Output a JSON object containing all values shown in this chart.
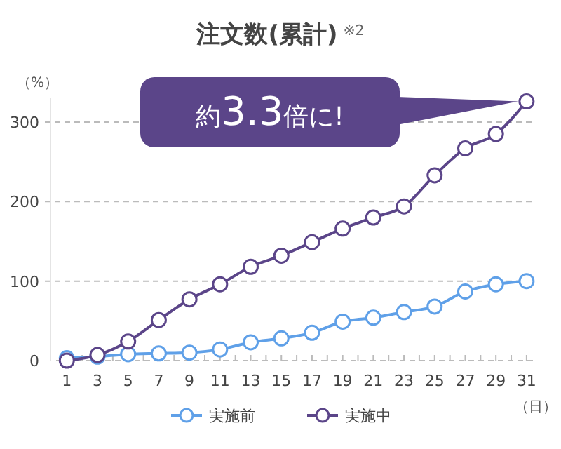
{
  "chart_data": {
    "type": "line",
    "title": "注文数(累計)$^{※2}$",
    "xlabel": "（日）",
    "ylabel": "（%）",
    "x": [
      1,
      3,
      5,
      7,
      9,
      11,
      13,
      15,
      17,
      19,
      21,
      23,
      25,
      27,
      29,
      31
    ],
    "series": [
      {
        "name": "実施前",
        "color": "#5fa0e8",
        "values": [
          3,
          5,
          8,
          9,
          10,
          14,
          23,
          28,
          35,
          49,
          54,
          61,
          68,
          87,
          96,
          100
        ]
      },
      {
        "name": "実施中",
        "color": "#5b4589",
        "values": [
          0,
          7,
          24,
          51,
          77,
          96,
          118,
          132,
          149,
          166,
          180,
          194,
          233,
          267,
          285,
          326
        ]
      }
    ],
    "xlim": [
      0.3,
      31.6
    ],
    "ylim": [
      0,
      330
    ],
    "xticks": [
      1,
      {
        "value": 2,
        "label": null
      },
      3,
      {
        "value": 4,
        "label": null
      },
      5,
      {
        "value": 6,
        "label": null
      },
      7,
      {
        "value": 8,
        "label": null
      },
      9,
      {
        "value": 10,
        "label": null
      },
      11,
      {
        "value": 12,
        "label": null
      },
      13,
      {
        "value": 14,
        "label": null
      },
      15,
      {
        "value": 16,
        "label": null
      },
      17,
      {
        "value": 18,
        "label": null
      },
      19,
      {
        "value": 20,
        "label": null
      },
      21,
      {
        "value": 22,
        "label": null
      },
      23,
      {
        "value": 24,
        "label": null
      },
      25,
      {
        "value": 26,
        "label": null
      },
      27,
      {
        "value": 28,
        "label": null
      },
      29,
      {
        "value": 30,
        "label": null
      },
      31
    ],
    "yticks": [
      0,
      100,
      200,
      300
    ],
    "grid": "y",
    "legend": "bottom",
    "marker": "circle",
    "line_style": "solid",
    "annotations": [
      "約3.3倍に!"
    ]
  }
}
